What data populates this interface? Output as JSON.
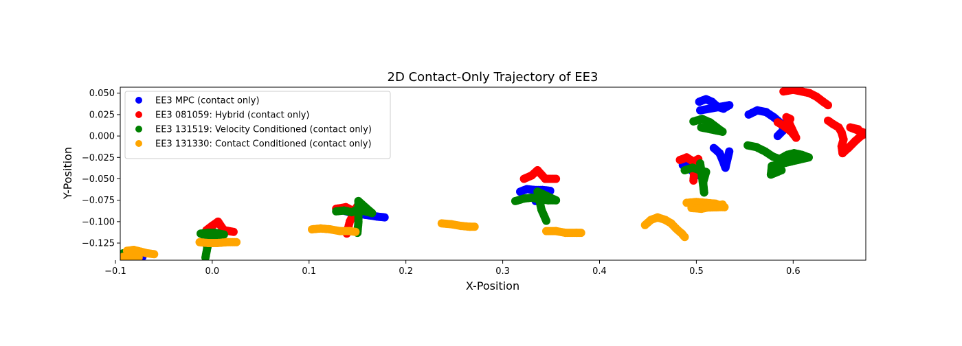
{
  "chart_data": {
    "type": "scatter",
    "title": "2D Contact-Only Trajectory of EE3",
    "xlabel": "X-Position",
    "ylabel": "Y-Position",
    "xlim": [
      -0.095,
      0.675
    ],
    "ylim": [
      -0.145,
      0.057
    ],
    "xticks": [
      -0.1,
      0.0,
      0.1,
      0.2,
      0.3,
      0.4,
      0.5,
      0.6
    ],
    "xtick_labels": [
      "−0.1",
      "0.0",
      "0.1",
      "0.2",
      "0.3",
      "0.4",
      "0.5",
      "0.6"
    ],
    "yticks": [
      -0.125,
      -0.1,
      -0.075,
      -0.05,
      -0.025,
      0.0,
      0.025,
      0.05
    ],
    "ytick_labels": [
      "−0.125",
      "−0.100",
      "−0.075",
      "−0.050",
      "−0.025",
      "0.000",
      "0.025",
      "0.050"
    ],
    "grid": false,
    "legend_position": "upper-left",
    "series": [
      {
        "name": "EE3 MPC (contact only)",
        "color": "#0000ff",
        "clusters": [
          [
            [
              -0.092,
              -0.139
            ],
            [
              -0.085,
              -0.14
            ],
            [
              -0.078,
              -0.14
            ],
            [
              -0.072,
              -0.141
            ]
          ],
          [
            [
              -0.003,
              -0.12
            ],
            [
              0.0,
              -0.125
            ],
            [
              0.001,
              -0.118
            ]
          ],
          [
            [
              0.132,
              -0.086
            ],
            [
              0.145,
              -0.09
            ],
            [
              0.158,
              -0.092
            ],
            [
              0.17,
              -0.094
            ],
            [
              0.178,
              -0.095
            ]
          ],
          [
            [
              0.318,
              -0.065
            ],
            [
              0.325,
              -0.062
            ],
            [
              0.333,
              -0.063
            ],
            [
              0.341,
              -0.063
            ],
            [
              0.349,
              -0.064
            ],
            [
              0.334,
              -0.076
            ]
          ],
          [
            [
              0.503,
              0.04
            ],
            [
              0.51,
              0.043
            ],
            [
              0.516,
              0.04
            ],
            [
              0.522,
              0.034
            ],
            [
              0.528,
              0.032
            ],
            [
              0.534,
              0.036
            ],
            [
              0.504,
              0.03
            ]
          ],
          [
            [
              0.554,
              0.025
            ],
            [
              0.563,
              0.03
            ],
            [
              0.572,
              0.028
            ],
            [
              0.58,
              0.022
            ],
            [
              0.587,
              0.015
            ],
            [
              0.591,
              0.008
            ],
            [
              0.584,
              0.0
            ]
          ],
          [
            [
              0.518,
              -0.014
            ],
            [
              0.524,
              -0.02
            ],
            [
              0.527,
              -0.028
            ],
            [
              0.53,
              -0.037
            ],
            [
              0.534,
              -0.018
            ]
          ],
          [
            [
              0.486,
              -0.034
            ],
            [
              0.495,
              -0.04
            ],
            [
              0.5,
              -0.046
            ],
            [
              0.49,
              -0.03
            ]
          ]
        ]
      },
      {
        "name": "EE3 081059: Hybrid (contact only)",
        "color": "#ff0000",
        "clusters": [
          [
            [
              -0.09,
              -0.138
            ],
            [
              -0.083,
              -0.137
            ],
            [
              -0.077,
              -0.14
            ]
          ],
          [
            [
              -0.006,
              -0.11
            ],
            [
              0.001,
              -0.104
            ],
            [
              0.006,
              -0.1
            ],
            [
              0.012,
              -0.11
            ],
            [
              0.022,
              -0.112
            ]
          ],
          [
            [
              0.128,
              -0.085
            ],
            [
              0.138,
              -0.083
            ],
            [
              0.146,
              -0.088
            ],
            [
              0.15,
              -0.082
            ],
            [
              0.142,
              -0.1
            ],
            [
              0.139,
              -0.114
            ]
          ],
          [
            [
              0.322,
              -0.05
            ],
            [
              0.33,
              -0.046
            ],
            [
              0.336,
              -0.04
            ],
            [
              0.344,
              -0.05
            ],
            [
              0.355,
              -0.05
            ]
          ],
          [
            [
              0.483,
              -0.028
            ],
            [
              0.49,
              -0.025
            ],
            [
              0.497,
              -0.03
            ],
            [
              0.502,
              -0.027
            ],
            [
              0.498,
              -0.04
            ],
            [
              0.497,
              -0.052
            ]
          ],
          [
            [
              0.584,
              0.016
            ],
            [
              0.59,
              0.012
            ],
            [
              0.598,
              0.005
            ],
            [
              0.603,
              -0.002
            ],
            [
              0.593,
              0.022
            ],
            [
              0.597,
              0.02
            ]
          ],
          [
            [
              0.59,
              0.052
            ],
            [
              0.6,
              0.054
            ],
            [
              0.609,
              0.052
            ],
            [
              0.617,
              0.05
            ],
            [
              0.624,
              0.046
            ],
            [
              0.631,
              0.04
            ],
            [
              0.636,
              0.036
            ]
          ],
          [
            [
              0.636,
              0.018
            ],
            [
              0.641,
              0.014
            ],
            [
              0.647,
              0.01
            ],
            [
              0.65,
              0.004
            ],
            [
              0.652,
              -0.004
            ],
            [
              0.65,
              -0.012
            ],
            [
              0.651,
              -0.02
            ],
            [
              0.657,
              -0.014
            ],
            [
              0.664,
              -0.006
            ],
            [
              0.67,
              0.0
            ],
            [
              0.675,
              0.003
            ],
            [
              0.659,
              0.01
            ],
            [
              0.667,
              0.008
            ]
          ]
        ]
      },
      {
        "name": "EE3 131519: Velocity Conditioned (contact only)",
        "color": "#008000",
        "clusters": [
          [
            [
              -0.092,
              -0.137
            ],
            [
              -0.085,
              -0.136
            ],
            [
              -0.078,
              -0.137
            ],
            [
              -0.082,
              -0.14
            ]
          ],
          [
            [
              -0.012,
              -0.114
            ],
            [
              -0.004,
              -0.113
            ],
            [
              0.003,
              -0.113
            ],
            [
              0.012,
              -0.115
            ],
            [
              -0.008,
              -0.12
            ],
            [
              -0.005,
              -0.13
            ],
            [
              -0.007,
              -0.142
            ]
          ],
          [
            [
              0.128,
              -0.088
            ],
            [
              0.136,
              -0.087
            ],
            [
              0.144,
              -0.089
            ],
            [
              0.15,
              -0.086
            ],
            [
              0.158,
              -0.088
            ],
            [
              0.165,
              -0.09
            ],
            [
              0.151,
              -0.076
            ],
            [
              0.151,
              -0.1
            ],
            [
              0.15,
              -0.113
            ]
          ],
          [
            [
              0.313,
              -0.076
            ],
            [
              0.322,
              -0.073
            ],
            [
              0.33,
              -0.072
            ],
            [
              0.338,
              -0.074
            ],
            [
              0.347,
              -0.075
            ],
            [
              0.355,
              -0.075
            ],
            [
              0.336,
              -0.065
            ],
            [
              0.34,
              -0.086
            ],
            [
              0.345,
              -0.099
            ]
          ],
          [
            [
              0.497,
              0.017
            ],
            [
              0.506,
              0.02
            ],
            [
              0.514,
              0.016
            ],
            [
              0.521,
              0.01
            ],
            [
              0.527,
              0.005
            ],
            [
              0.505,
              0.01
            ]
          ],
          [
            [
              0.488,
              -0.04
            ],
            [
              0.496,
              -0.037
            ],
            [
              0.504,
              -0.04
            ],
            [
              0.51,
              -0.042
            ],
            [
              0.507,
              -0.054
            ],
            [
              0.508,
              -0.066
            ],
            [
              0.504,
              -0.032
            ]
          ],
          [
            [
              0.553,
              -0.011
            ],
            [
              0.562,
              -0.013
            ],
            [
              0.571,
              -0.018
            ],
            [
              0.579,
              -0.024
            ],
            [
              0.586,
              -0.027
            ],
            [
              0.594,
              -0.022
            ],
            [
              0.601,
              -0.02
            ],
            [
              0.609,
              -0.022
            ],
            [
              0.616,
              -0.025
            ],
            [
              0.578,
              -0.035
            ],
            [
              0.577,
              -0.045
            ],
            [
              0.588,
              -0.04
            ]
          ]
        ]
      },
      {
        "name": "EE3 131330: Contact Conditioned (contact only)",
        "color": "#ffa500",
        "clusters": [
          [
            [
              -0.092,
              -0.141
            ],
            [
              -0.087,
              -0.14
            ],
            [
              -0.081,
              -0.141
            ],
            [
              -0.076,
              -0.142
            ]
          ],
          [
            [
              -0.088,
              -0.134
            ],
            [
              -0.081,
              -0.133
            ],
            [
              -0.074,
              -0.135
            ],
            [
              -0.067,
              -0.137
            ],
            [
              -0.06,
              -0.138
            ]
          ],
          [
            [
              -0.013,
              -0.124
            ],
            [
              -0.004,
              -0.125
            ],
            [
              0.005,
              -0.125
            ],
            [
              0.015,
              -0.124
            ],
            [
              0.025,
              -0.124
            ]
          ],
          [
            [
              0.103,
              -0.109
            ],
            [
              0.112,
              -0.108
            ],
            [
              0.122,
              -0.109
            ],
            [
              0.132,
              -0.111
            ],
            [
              0.142,
              -0.111
            ],
            [
              0.148,
              -0.112
            ]
          ],
          [
            [
              0.237,
              -0.102
            ],
            [
              0.247,
              -0.103
            ],
            [
              0.257,
              -0.105
            ],
            [
              0.266,
              -0.106
            ],
            [
              0.271,
              -0.106
            ]
          ],
          [
            [
              0.345,
              -0.111
            ],
            [
              0.355,
              -0.111
            ],
            [
              0.365,
              -0.113
            ],
            [
              0.376,
              -0.113
            ],
            [
              0.381,
              -0.113
            ]
          ],
          [
            [
              0.447,
              -0.104
            ],
            [
              0.453,
              -0.098
            ],
            [
              0.46,
              -0.095
            ],
            [
              0.468,
              -0.098
            ],
            [
              0.474,
              -0.102
            ],
            [
              0.479,
              -0.108
            ],
            [
              0.485,
              -0.114
            ],
            [
              0.488,
              -0.118
            ]
          ],
          [
            [
              0.49,
              -0.078
            ],
            [
              0.5,
              -0.077
            ],
            [
              0.51,
              -0.078
            ],
            [
              0.52,
              -0.079
            ],
            [
              0.529,
              -0.083
            ],
            [
              0.495,
              -0.084
            ],
            [
              0.505,
              -0.085
            ],
            [
              0.518,
              -0.082
            ],
            [
              0.527,
              -0.08
            ]
          ]
        ]
      }
    ]
  }
}
